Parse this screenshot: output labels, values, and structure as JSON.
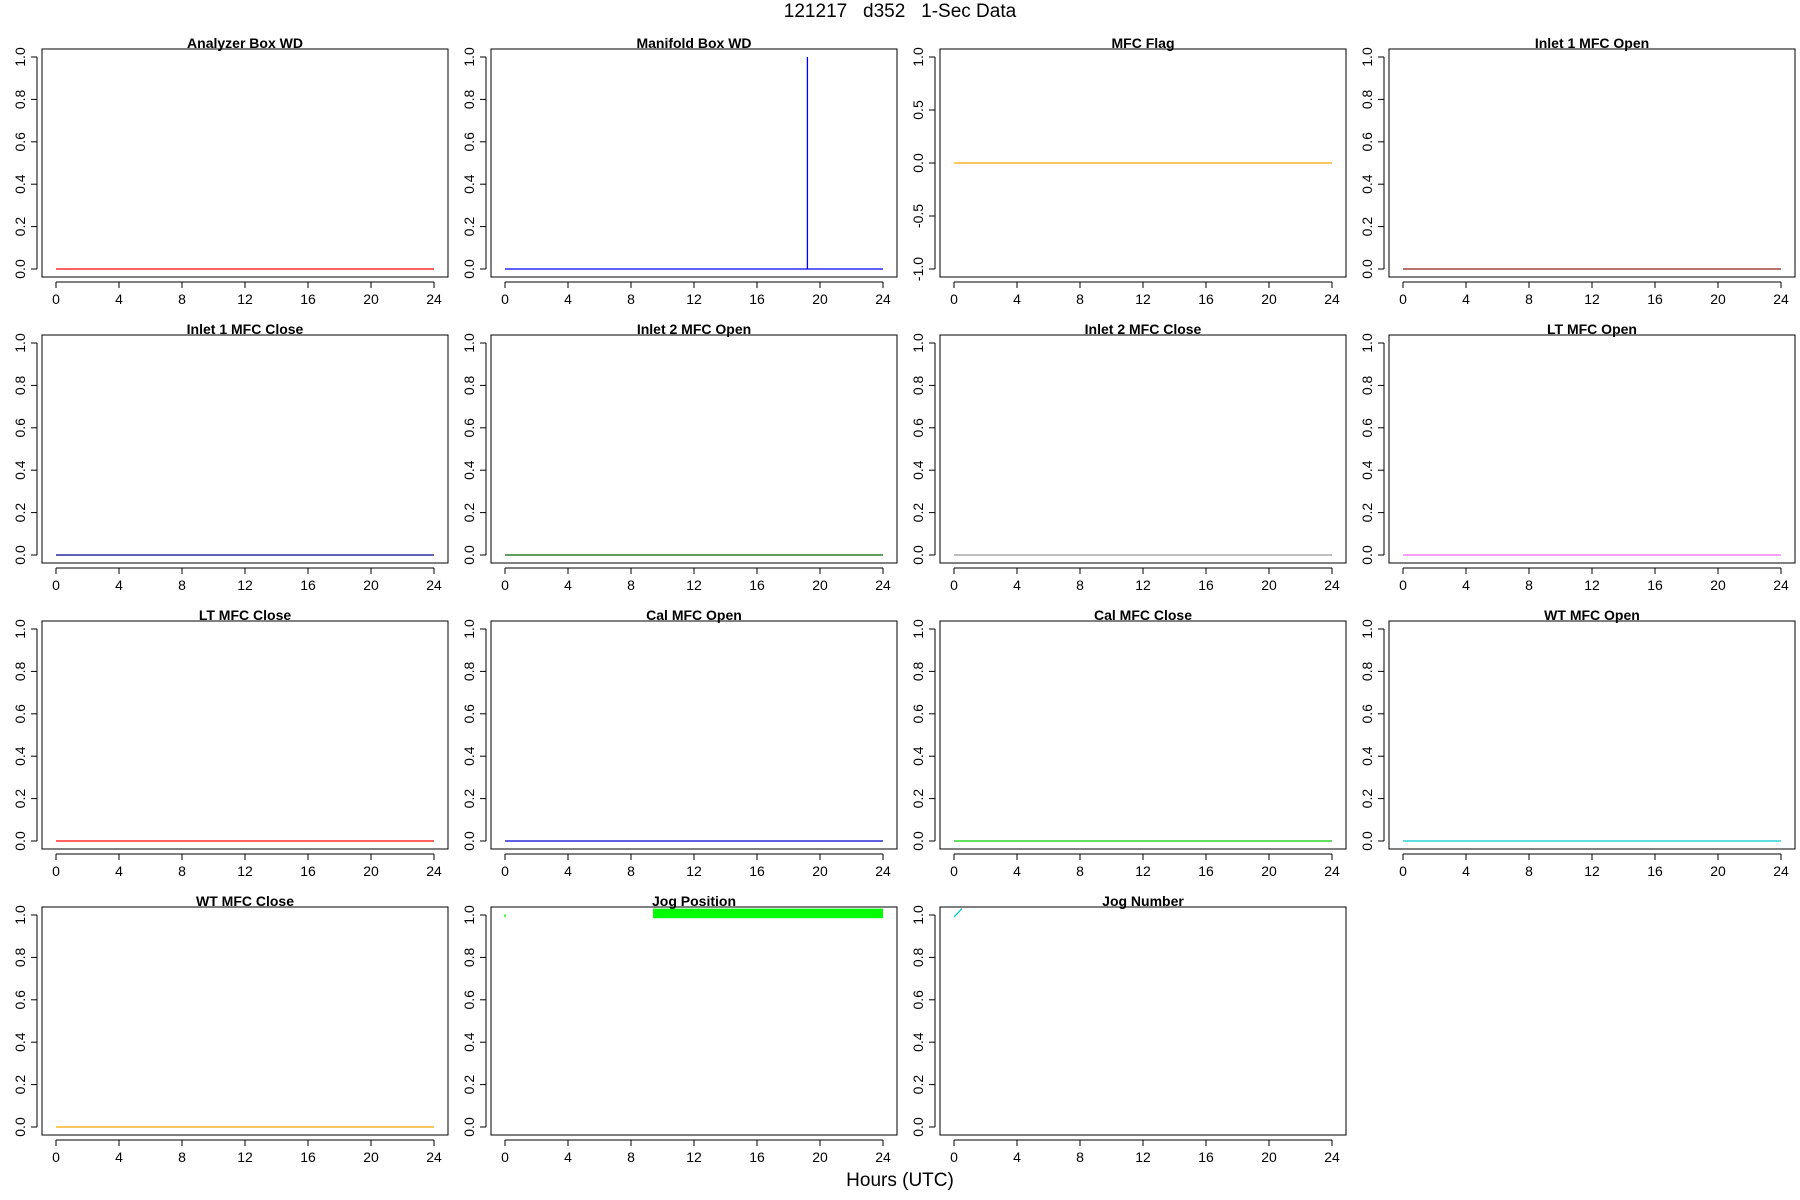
{
  "page": {
    "title": "121217   d352   1-Sec Data",
    "xlabel": "Hours (UTC)"
  },
  "chart_data": [
    {
      "type": "line",
      "title": "Analyzer Box WD",
      "color": "#ff0000",
      "xlim": [
        0,
        24
      ],
      "ylim": [
        0,
        1
      ],
      "xticks": [
        0,
        4,
        8,
        12,
        16,
        20,
        24
      ],
      "yticks": [
        0,
        0.2,
        0.4,
        0.6,
        0.8,
        1
      ],
      "ytick_labels": [
        "0.0",
        "0.2",
        "0.4",
        "0.6",
        "0.8",
        "1.0"
      ],
      "series": [
        {
          "x": [
            0,
            24
          ],
          "y": [
            0,
            0
          ]
        }
      ]
    },
    {
      "type": "line",
      "title": "Manifold Box WD",
      "color": "#0000ff",
      "xlim": [
        0,
        24
      ],
      "ylim": [
        0,
        1
      ],
      "xticks": [
        0,
        4,
        8,
        12,
        16,
        20,
        24
      ],
      "yticks": [
        0,
        0.2,
        0.4,
        0.6,
        0.8,
        1
      ],
      "ytick_labels": [
        "0.0",
        "0.2",
        "0.4",
        "0.6",
        "0.8",
        "1.0"
      ],
      "series": [
        {
          "x": [
            0,
            19.2,
            19.2,
            19.2,
            24
          ],
          "y": [
            0,
            0,
            1,
            0,
            0
          ]
        }
      ]
    },
    {
      "type": "line",
      "title": "MFC Flag",
      "color": "#ffa500",
      "xlim": [
        0,
        24
      ],
      "ylim": [
        -1,
        1
      ],
      "xticks": [
        0,
        4,
        8,
        12,
        16,
        20,
        24
      ],
      "yticks": [
        -1,
        -0.5,
        0,
        0.5,
        1
      ],
      "ytick_labels": [
        "-1.0",
        "-0.5",
        "0.0",
        "0.5",
        "1.0"
      ],
      "series": [
        {
          "x": [
            0,
            24
          ],
          "y": [
            0,
            0
          ]
        }
      ]
    },
    {
      "type": "line",
      "title": "Inlet 1 MFC Open",
      "color": "#8b1a1a",
      "xlim": [
        0,
        24
      ],
      "ylim": [
        0,
        1
      ],
      "xticks": [
        0,
        4,
        8,
        12,
        16,
        20,
        24
      ],
      "yticks": [
        0,
        0.2,
        0.4,
        0.6,
        0.8,
        1
      ],
      "ytick_labels": [
        "0.0",
        "0.2",
        "0.4",
        "0.6",
        "0.8",
        "1.0"
      ],
      "series": [
        {
          "x": [
            0,
            24
          ],
          "y": [
            0,
            0
          ]
        }
      ]
    },
    {
      "type": "line",
      "title": "Inlet 1 MFC Close",
      "color": "#00008b",
      "xlim": [
        0,
        24
      ],
      "ylim": [
        0,
        1
      ],
      "xticks": [
        0,
        4,
        8,
        12,
        16,
        20,
        24
      ],
      "yticks": [
        0,
        0.2,
        0.4,
        0.6,
        0.8,
        1
      ],
      "ytick_labels": [
        "0.0",
        "0.2",
        "0.4",
        "0.6",
        "0.8",
        "1.0"
      ],
      "series": [
        {
          "x": [
            0,
            24
          ],
          "y": [
            0,
            0
          ]
        }
      ]
    },
    {
      "type": "line",
      "title": "Inlet 2 MFC Open",
      "color": "#006400",
      "xlim": [
        0,
        24
      ],
      "ylim": [
        0,
        1
      ],
      "xticks": [
        0,
        4,
        8,
        12,
        16,
        20,
        24
      ],
      "yticks": [
        0,
        0.2,
        0.4,
        0.6,
        0.8,
        1
      ],
      "ytick_labels": [
        "0.0",
        "0.2",
        "0.4",
        "0.6",
        "0.8",
        "1.0"
      ],
      "series": [
        {
          "x": [
            0,
            24
          ],
          "y": [
            0,
            0
          ]
        }
      ]
    },
    {
      "type": "line",
      "title": "Inlet 2 MFC Close",
      "color": "#999999",
      "xlim": [
        0,
        24
      ],
      "ylim": [
        0,
        1
      ],
      "xticks": [
        0,
        4,
        8,
        12,
        16,
        20,
        24
      ],
      "yticks": [
        0,
        0.2,
        0.4,
        0.6,
        0.8,
        1
      ],
      "ytick_labels": [
        "0.0",
        "0.2",
        "0.4",
        "0.6",
        "0.8",
        "1.0"
      ],
      "series": [
        {
          "x": [
            0,
            24
          ],
          "y": [
            0,
            0
          ]
        }
      ]
    },
    {
      "type": "line",
      "title": "LT MFC Open",
      "color": "#ff66ff",
      "xlim": [
        0,
        24
      ],
      "ylim": [
        0,
        1
      ],
      "xticks": [
        0,
        4,
        8,
        12,
        16,
        20,
        24
      ],
      "yticks": [
        0,
        0.2,
        0.4,
        0.6,
        0.8,
        1
      ],
      "ytick_labels": [
        "0.0",
        "0.2",
        "0.4",
        "0.6",
        "0.8",
        "1.0"
      ],
      "series": [
        {
          "x": [
            0,
            24
          ],
          "y": [
            0,
            0
          ]
        }
      ]
    },
    {
      "type": "line",
      "title": "LT MFC Close",
      "color": "#ff0000",
      "xlim": [
        0,
        24
      ],
      "ylim": [
        0,
        1
      ],
      "xticks": [
        0,
        4,
        8,
        12,
        16,
        20,
        24
      ],
      "yticks": [
        0,
        0.2,
        0.4,
        0.6,
        0.8,
        1
      ],
      "ytick_labels": [
        "0.0",
        "0.2",
        "0.4",
        "0.6",
        "0.8",
        "1.0"
      ],
      "series": [
        {
          "x": [
            0,
            24
          ],
          "y": [
            0,
            0
          ]
        }
      ]
    },
    {
      "type": "line",
      "title": "Cal MFC Open",
      "color": "#0000cd",
      "xlim": [
        0,
        24
      ],
      "ylim": [
        0,
        1
      ],
      "xticks": [
        0,
        4,
        8,
        12,
        16,
        20,
        24
      ],
      "yticks": [
        0,
        0.2,
        0.4,
        0.6,
        0.8,
        1
      ],
      "ytick_labels": [
        "0.0",
        "0.2",
        "0.4",
        "0.6",
        "0.8",
        "1.0"
      ],
      "series": [
        {
          "x": [
            0,
            24
          ],
          "y": [
            0,
            0
          ]
        }
      ]
    },
    {
      "type": "line",
      "title": "Cal MFC Close",
      "color": "#00cc00",
      "xlim": [
        0,
        24
      ],
      "ylim": [
        0,
        1
      ],
      "xticks": [
        0,
        4,
        8,
        12,
        16,
        20,
        24
      ],
      "yticks": [
        0,
        0.2,
        0.4,
        0.6,
        0.8,
        1
      ],
      "ytick_labels": [
        "0.0",
        "0.2",
        "0.4",
        "0.6",
        "0.8",
        "1.0"
      ],
      "series": [
        {
          "x": [
            0,
            24
          ],
          "y": [
            0,
            0
          ]
        }
      ]
    },
    {
      "type": "line",
      "title": "WT MFC Open",
      "color": "#00cccc",
      "xlim": [
        0,
        24
      ],
      "ylim": [
        0,
        1
      ],
      "xticks": [
        0,
        4,
        8,
        12,
        16,
        20,
        24
      ],
      "yticks": [
        0,
        0.2,
        0.4,
        0.6,
        0.8,
        1
      ],
      "ytick_labels": [
        "0.0",
        "0.2",
        "0.4",
        "0.6",
        "0.8",
        "1.0"
      ],
      "series": [
        {
          "x": [
            0,
            24
          ],
          "y": [
            0,
            0
          ]
        }
      ]
    },
    {
      "type": "line",
      "title": "WT MFC Close",
      "color": "#ffa500",
      "xlim": [
        0,
        24
      ],
      "ylim": [
        0,
        1
      ],
      "xticks": [
        0,
        4,
        8,
        12,
        16,
        20,
        24
      ],
      "yticks": [
        0,
        0.2,
        0.4,
        0.6,
        0.8,
        1
      ],
      "ytick_labels": [
        "0.0",
        "0.2",
        "0.4",
        "0.6",
        "0.8",
        "1.0"
      ],
      "series": [
        {
          "x": [
            0,
            24
          ],
          "y": [
            0,
            0
          ]
        }
      ]
    },
    {
      "type": "line",
      "title": "Jog Position",
      "color": "#00ff00",
      "xlim": [
        0,
        24
      ],
      "ylim": [
        0,
        1
      ],
      "xticks": [
        0,
        4,
        8,
        12,
        16,
        20,
        24
      ],
      "yticks": [
        0,
        0.2,
        0.4,
        0.6,
        0.8,
        1
      ],
      "ytick_labels": [
        "0.0",
        "0.2",
        "0.4",
        "0.6",
        "0.8",
        "1.0"
      ],
      "series": [
        {
          "x": [
            0,
            0,
            0.05
          ],
          "y": [
            0.99,
            1.0,
            1.0
          ]
        }
      ],
      "bands": [
        {
          "x0": 9.4,
          "x1": 24,
          "y0": 0.985,
          "y1": 1.03
        }
      ]
    },
    {
      "type": "line",
      "title": "Jog Number",
      "color": "#00cccc",
      "xlim": [
        0,
        24
      ],
      "ylim": [
        0,
        1
      ],
      "xticks": [
        0,
        4,
        8,
        12,
        16,
        20,
        24
      ],
      "yticks": [
        0,
        0.2,
        0.4,
        0.6,
        0.8,
        1
      ],
      "ytick_labels": [
        "0.0",
        "0.2",
        "0.4",
        "0.6",
        "0.8",
        "1.0"
      ],
      "series": [
        {
          "x": [
            0,
            0.5
          ],
          "y": [
            0.99,
            1.03
          ]
        }
      ]
    }
  ]
}
